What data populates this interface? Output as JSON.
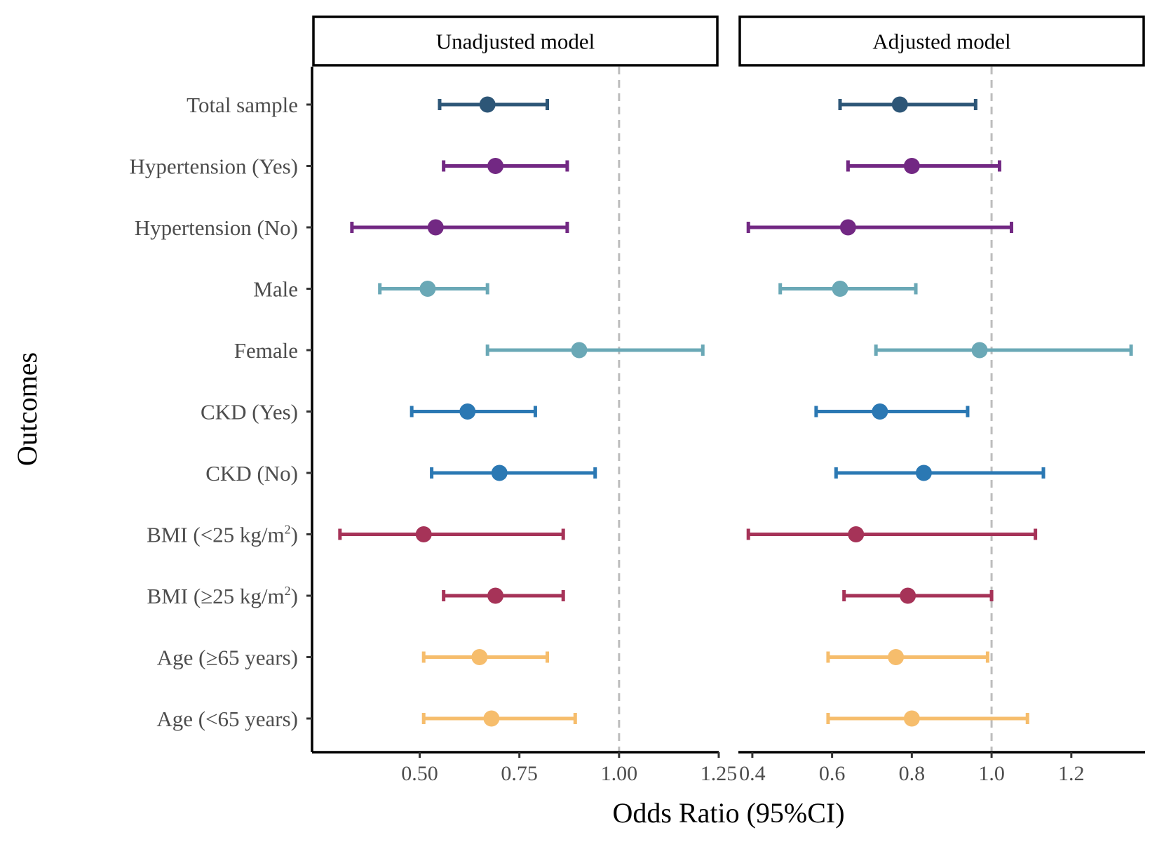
{
  "chart_data": {
    "type": "forest",
    "xlabel": "Odds Ratio (95%CI)",
    "ylabel": "Outcomes",
    "reference_line": 1.0,
    "row_labels": [
      "Total sample",
      "Hypertension (Yes)",
      "Hypertension (No)",
      "Male",
      "Female",
      "CKD (Yes)",
      "CKD (No)",
      "BMI (<25 kg/m²)",
      "BMI (≥25 kg/m²)",
      "Age (≥65 years)",
      "Age (<65 years)"
    ],
    "row_colors": [
      "#2d5677",
      "#722883",
      "#722883",
      "#6aa8b6",
      "#6aa8b6",
      "#2b78b3",
      "#2b78b3",
      "#a63358",
      "#a63358",
      "#f6bd6c",
      "#f6bd6c"
    ],
    "panels": [
      {
        "title": "Unadjusted model",
        "xlim": [
          0.23,
          1.25
        ],
        "ticks": [
          0.5,
          0.75,
          1.0,
          1.25
        ],
        "tick_labels": [
          "0.50",
          "0.75",
          "1.00",
          "1.25"
        ],
        "estimates": [
          {
            "or": 0.67,
            "lower": 0.55,
            "upper": 0.82
          },
          {
            "or": 0.69,
            "lower": 0.56,
            "upper": 0.87
          },
          {
            "or": 0.54,
            "lower": 0.33,
            "upper": 0.87
          },
          {
            "or": 0.52,
            "lower": 0.4,
            "upper": 0.67
          },
          {
            "or": 0.9,
            "lower": 0.67,
            "upper": 1.21
          },
          {
            "or": 0.62,
            "lower": 0.48,
            "upper": 0.79
          },
          {
            "or": 0.7,
            "lower": 0.53,
            "upper": 0.94
          },
          {
            "or": 0.51,
            "lower": 0.3,
            "upper": 0.86
          },
          {
            "or": 0.69,
            "lower": 0.56,
            "upper": 0.86
          },
          {
            "or": 0.65,
            "lower": 0.51,
            "upper": 0.82
          },
          {
            "or": 0.68,
            "lower": 0.51,
            "upper": 0.89
          }
        ]
      },
      {
        "title": "Adjusted model",
        "xlim": [
          0.365,
          1.385
        ],
        "ticks": [
          0.4,
          0.6,
          0.8,
          1.0,
          1.2
        ],
        "tick_labels": [
          "0.4",
          "0.6",
          "0.8",
          "1.0",
          "1.2"
        ],
        "estimates": [
          {
            "or": 0.77,
            "lower": 0.62,
            "upper": 0.96
          },
          {
            "or": 0.8,
            "lower": 0.64,
            "upper": 1.02
          },
          {
            "or": 0.64,
            "lower": 0.39,
            "upper": 1.05
          },
          {
            "or": 0.62,
            "lower": 0.47,
            "upper": 0.81
          },
          {
            "or": 0.97,
            "lower": 0.71,
            "upper": 1.35
          },
          {
            "or": 0.72,
            "lower": 0.56,
            "upper": 0.94
          },
          {
            "or": 0.83,
            "lower": 0.61,
            "upper": 1.13
          },
          {
            "or": 0.66,
            "lower": 0.39,
            "upper": 1.11
          },
          {
            "or": 0.79,
            "lower": 0.63,
            "upper": 1.0
          },
          {
            "or": 0.76,
            "lower": 0.59,
            "upper": 0.99
          },
          {
            "or": 0.8,
            "lower": 0.59,
            "upper": 1.09
          }
        ]
      }
    ]
  }
}
